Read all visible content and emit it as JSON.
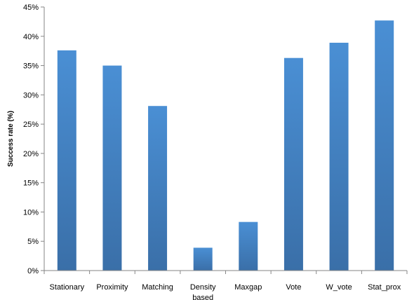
{
  "chart_data": {
    "type": "bar",
    "categories": [
      "Stationary",
      "Proximity",
      "Matching",
      "Density based",
      "Maxgap",
      "Vote",
      "W_vote",
      "Stat_prox"
    ],
    "category_lines": [
      [
        "Stationary"
      ],
      [
        "Proximity"
      ],
      [
        "Matching"
      ],
      [
        "Density",
        "based"
      ],
      [
        "Maxgap"
      ],
      [
        "Vote"
      ],
      [
        "W_vote"
      ],
      [
        "Stat_prox"
      ]
    ],
    "values": [
      37.6,
      35.0,
      28.1,
      3.9,
      8.3,
      36.3,
      38.9,
      42.7
    ],
    "ylabel": "Success rate (%)",
    "ylim": [
      0,
      45
    ],
    "yticks": [
      0,
      5,
      10,
      15,
      20,
      25,
      30,
      35,
      40,
      45
    ],
    "ytick_labels": [
      "0%",
      "5%",
      "10%",
      "15%",
      "20%",
      "25%",
      "30%",
      "35%",
      "40%",
      "45%"
    ],
    "grid": false,
    "colors": {
      "bar_top": "#4a8fd4",
      "bar_bottom": "#3a6fa8",
      "axis": "#868686"
    }
  }
}
